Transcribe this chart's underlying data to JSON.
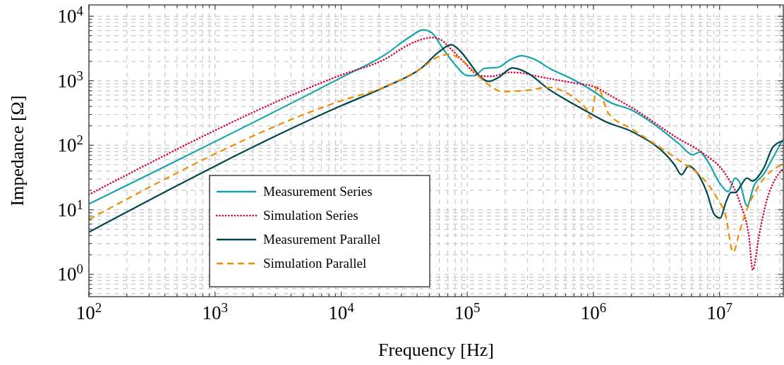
{
  "chart_data": {
    "type": "line",
    "xlabel": "Frequency [Hz]",
    "ylabel": "Impedance [Ω]",
    "log": "xy",
    "grid": true,
    "legend": "bottom left",
    "xlim": [
      100,
      32000000
    ],
    "ylim": [
      0.45,
      15000
    ],
    "xticks": [
      {
        "value": 100,
        "label": "10$^{2}$"
      },
      {
        "value": 200,
        "label": null
      },
      {
        "value": 300,
        "label": null
      },
      {
        "value": 400,
        "label": null
      },
      {
        "value": 500,
        "label": null
      },
      {
        "value": 600,
        "label": null
      },
      {
        "value": 700,
        "label": null
      },
      {
        "value": 800,
        "label": null
      },
      {
        "value": 900,
        "label": null
      },
      {
        "value": 1000,
        "label": "10$^{3}$"
      },
      {
        "value": 2000,
        "label": null
      },
      {
        "value": 3000,
        "label": null
      },
      {
        "value": 4000,
        "label": null
      },
      {
        "value": 5000,
        "label": null
      },
      {
        "value": 6000,
        "label": null
      },
      {
        "value": 7000,
        "label": null
      },
      {
        "value": 8000,
        "label": null
      },
      {
        "value": 9000,
        "label": null
      },
      {
        "value": 10000,
        "label": "10$^{4}$"
      },
      {
        "value": 20000,
        "label": null
      },
      {
        "value": 30000,
        "label": null
      },
      {
        "value": 40000,
        "label": null
      },
      {
        "value": 50000,
        "label": null
      },
      {
        "value": 60000,
        "label": null
      },
      {
        "value": 70000,
        "label": null
      },
      {
        "value": 80000,
        "label": null
      },
      {
        "value": 90000,
        "label": null
      },
      {
        "value": 100000,
        "label": "10$^{5}$"
      },
      {
        "value": 200000,
        "label": null
      },
      {
        "value": 300000,
        "label": null
      },
      {
        "value": 400000,
        "label": null
      },
      {
        "value": 500000,
        "label": null
      },
      {
        "value": 600000,
        "label": null
      },
      {
        "value": 700000,
        "label": null
      },
      {
        "value": 800000,
        "label": null
      },
      {
        "value": 900000,
        "label": null
      },
      {
        "value": 1000000,
        "label": "10$^{6}$"
      },
      {
        "value": 2000000,
        "label": null
      },
      {
        "value": 3000000,
        "label": null
      },
      {
        "value": 4000000,
        "label": null
      },
      {
        "value": 5000000,
        "label": null
      },
      {
        "value": 6000000,
        "label": null
      },
      {
        "value": 7000000,
        "label": null
      },
      {
        "value": 8000000,
        "label": null
      },
      {
        "value": 9000000,
        "label": null
      },
      {
        "value": 10000000,
        "label": "10$^{7}$"
      },
      {
        "value": 20000000,
        "label": null
      },
      {
        "value": 30000000,
        "label": null
      }
    ],
    "yticks": [
      {
        "value": 0.5,
        "label": null
      },
      {
        "value": 0.6,
        "label": null
      },
      {
        "value": 0.7,
        "label": null
      },
      {
        "value": 0.8,
        "label": null
      },
      {
        "value": 0.9,
        "label": null
      },
      {
        "value": 1,
        "label": "10$^{0}$"
      },
      {
        "value": 2,
        "label": null
      },
      {
        "value": 3,
        "label": null
      },
      {
        "value": 4,
        "label": null
      },
      {
        "value": 5,
        "label": null
      },
      {
        "value": 6,
        "label": null
      },
      {
        "value": 7,
        "label": null
      },
      {
        "value": 8,
        "label": null
      },
      {
        "value": 9,
        "label": null
      },
      {
        "value": 10,
        "label": "10$^{1}$"
      },
      {
        "value": 20,
        "label": null
      },
      {
        "value": 30,
        "label": null
      },
      {
        "value": 40,
        "label": null
      },
      {
        "value": 50,
        "label": null
      },
      {
        "value": 60,
        "label": null
      },
      {
        "value": 70,
        "label": null
      },
      {
        "value": 80,
        "label": null
      },
      {
        "value": 90,
        "label": null
      },
      {
        "value": 100,
        "label": "10$^{2}$"
      },
      {
        "value": 200,
        "label": null
      },
      {
        "value": 300,
        "label": null
      },
      {
        "value": 400,
        "label": null
      },
      {
        "value": 500,
        "label": null
      },
      {
        "value": 600,
        "label": null
      },
      {
        "value": 700,
        "label": null
      },
      {
        "value": 800,
        "label": null
      },
      {
        "value": 900,
        "label": null
      },
      {
        "value": 1000,
        "label": "10$^{3}$"
      },
      {
        "value": 2000,
        "label": null
      },
      {
        "value": 3000,
        "label": null
      },
      {
        "value": 4000,
        "label": null
      },
      {
        "value": 5000,
        "label": null
      },
      {
        "value": 6000,
        "label": null
      },
      {
        "value": 7000,
        "label": null
      },
      {
        "value": 8000,
        "label": null
      },
      {
        "value": 9000,
        "label": null
      },
      {
        "value": 10000,
        "label": "10$^{4}$"
      }
    ],
    "series": [
      {
        "name": "Measurement Series",
        "color": "#17a3ad",
        "line_style": "solid",
        "x": [
          100,
          10000,
          22500,
          34400,
          44500,
          52600,
          63000,
          81500,
          100000,
          114000,
          136000,
          176000,
          216000,
          269000,
          335000,
          451000,
          689000,
          1070000,
          1260000,
          2030000,
          4740000,
          6140000,
          6980000,
          7930000,
          10300000,
          11700000,
          13300000,
          14500000,
          16500000,
          18800000,
          22200000,
          26600000,
          31800000
        ],
        "values": [
          12.3,
          1120,
          2570,
          4680,
          6170,
          5500,
          3310,
          1700,
          1200,
          1200,
          1550,
          1620,
          2090,
          2450,
          2190,
          1550,
          1050,
          630,
          500,
          347,
          107,
          71,
          79,
          59,
          24,
          19,
          31,
          26,
          11.5,
          24,
          35,
          65,
          123
        ]
      },
      {
        "name": "Simulation Series",
        "color": "#d7063f",
        "line_style": "dotted",
        "x": [
          100,
          10000,
          22500,
          34400,
          52600,
          59800,
          74500,
          96200,
          124000,
          155000,
          216000,
          269000,
          362000,
          689000,
          1010000,
          1430000,
          2030000,
          4740000,
          7350000,
          11200000,
          14500000,
          17200000,
          18300000,
          20600000,
          23400000,
          26600000,
          31800000
        ],
        "values": [
          17.2,
          1230,
          2190,
          3630,
          4680,
          4470,
          3090,
          1860,
          1200,
          1170,
          1350,
          1320,
          1170,
          930,
          810,
          560,
          380,
          126,
          76,
          35,
          12.9,
          3.5,
          1.17,
          4.1,
          12.9,
          26,
          43
        ]
      },
      {
        "name": "Measurement Parallel",
        "color": "#00474f",
        "line_style": "solid",
        "x": [
          100,
          10000,
          22500,
          42800,
          59800,
          74500,
          87900,
          105000,
          124000,
          147000,
          176000,
          228000,
          294000,
          451000,
          689000,
          857000,
          1260000,
          2030000,
          4390000,
          4990000,
          5680000,
          6460000,
          7930000,
          9020000,
          10100000,
          11200000,
          12300000,
          13300000,
          16500000,
          18100000,
          22200000,
          26600000,
          31800000
        ],
        "values": [
          4.5,
          410,
          810,
          1550,
          2820,
          3630,
          2880,
          1860,
          1200,
          980,
          1120,
          1580,
          1350,
          720,
          440,
          347,
          230,
          162,
          50,
          35,
          48,
          40,
          18.6,
          8.7,
          7.4,
          12.9,
          18.6,
          18.6,
          31,
          28,
          43,
          95,
          117
        ]
      },
      {
        "name": "Simulation Parallel",
        "color": "#f08c00",
        "line_style": "dashed",
        "x": [
          100,
          10000,
          22500,
          42800,
          59800,
          71600,
          87900,
          114000,
          147000,
          190000,
          294000,
          451000,
          582000,
          754000,
          891000,
          951000,
          1070000,
          1310000,
          2030000,
          4740000,
          7350000,
          9500000,
          11200000,
          12800000,
          14500000,
          16500000,
          20600000,
          31800000
        ],
        "values": [
          7.1,
          490,
          810,
          1550,
          2400,
          2570,
          2190,
          1350,
          870,
          680,
          710,
          790,
          680,
          490,
          347,
          263,
          810,
          316,
          178,
          59,
          31,
          15.5,
          7.9,
          2.2,
          4.8,
          10.2,
          24,
          52
        ]
      }
    ]
  }
}
